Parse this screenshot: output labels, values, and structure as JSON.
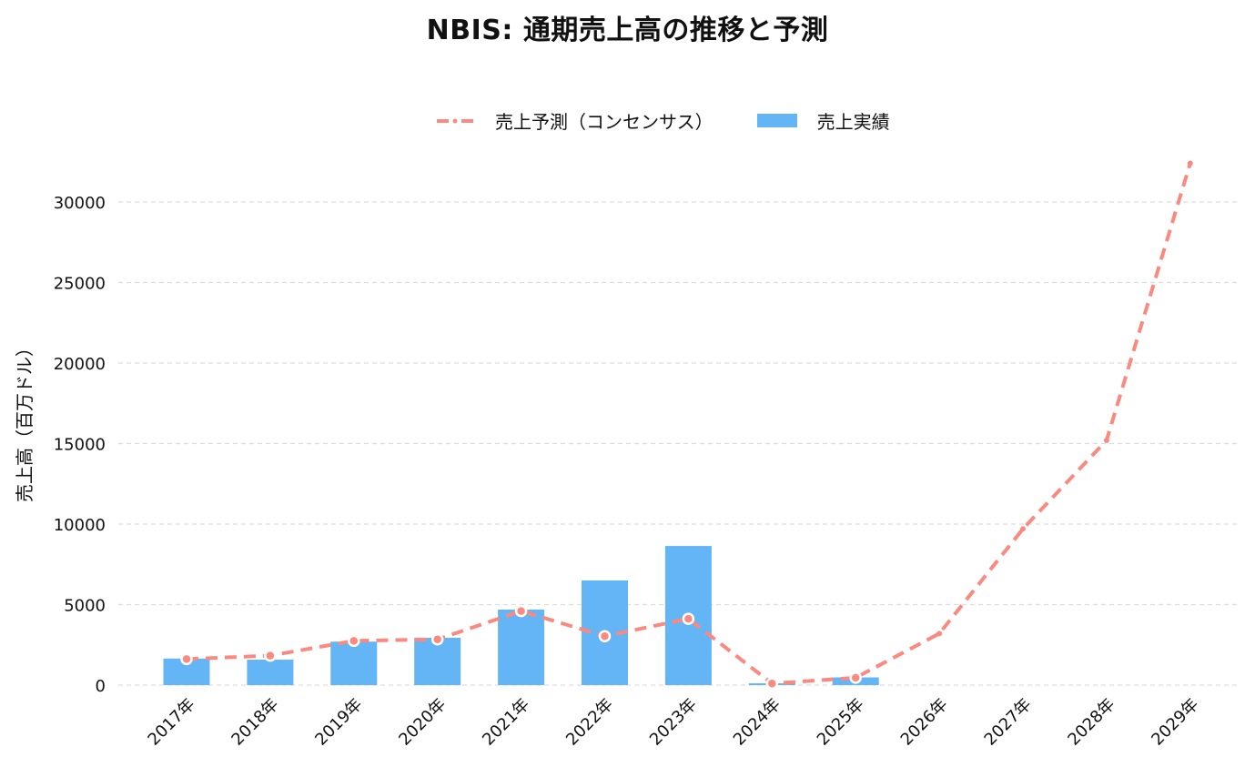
{
  "title": "NBIS: 通期売上高の推移と予測",
  "legend": {
    "forecast_label": "売上予測（コンセンサス）",
    "actual_label": "売上実績"
  },
  "colors": {
    "bar": "#64b5f6",
    "forecast_line": "#fa8a80",
    "grid": "#dddddd"
  },
  "chart_data": {
    "type": "bar+line",
    "title": "NBIS: 通期売上高の推移と予測",
    "xlabel": "",
    "ylabel": "売上高（百万ドル）",
    "ylim": [
      0,
      33000
    ],
    "yticks": [
      0,
      5000,
      10000,
      15000,
      20000,
      25000,
      30000
    ],
    "grid": "horizontal dashed",
    "legend_position": "top center",
    "categories": [
      "2017年",
      "2018年",
      "2019年",
      "2020年",
      "2021年",
      "2022年",
      "2023年",
      "2024年",
      "2025年",
      "2026年",
      "2027年",
      "2028年",
      "2029年"
    ],
    "series": [
      {
        "name": "売上実績",
        "type": "bar",
        "values": [
          1650,
          1580,
          2700,
          2940,
          4690,
          6500,
          8640,
          110,
          480,
          null,
          null,
          null,
          null
        ]
      },
      {
        "name": "売上予測（コンセンサス）",
        "type": "line",
        "style": "dashed",
        "values": [
          1620,
          1830,
          2750,
          2840,
          4600,
          3040,
          4120,
          100,
          460,
          3200,
          9700,
          15200,
          32400
        ]
      }
    ]
  }
}
